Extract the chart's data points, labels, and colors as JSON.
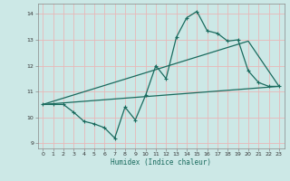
{
  "xlabel": "Humidex (Indice chaleur)",
  "bg_color": "#cce8e6",
  "grid_color": "#e8b8b8",
  "line_color": "#1a6b5e",
  "spine_color": "#888888",
  "xlim": [
    -0.5,
    23.5
  ],
  "ylim": [
    8.8,
    14.4
  ],
  "yticks": [
    9,
    10,
    11,
    12,
    13,
    14
  ],
  "xticks": [
    0,
    1,
    2,
    3,
    4,
    5,
    6,
    7,
    8,
    9,
    10,
    11,
    12,
    13,
    14,
    15,
    16,
    17,
    18,
    19,
    20,
    21,
    22,
    23
  ],
  "line1_x": [
    0,
    1,
    2,
    3,
    4,
    5,
    6,
    7,
    8,
    9,
    10,
    11,
    12,
    13,
    14,
    15,
    16,
    17,
    18,
    19,
    20,
    21,
    22,
    23
  ],
  "line1_y": [
    10.5,
    10.5,
    10.5,
    10.2,
    9.85,
    9.75,
    9.6,
    9.2,
    10.4,
    9.9,
    10.85,
    12.0,
    11.5,
    13.1,
    13.85,
    14.1,
    13.35,
    13.25,
    12.95,
    13.0,
    11.8,
    11.35,
    11.2,
    11.2
  ],
  "line2_x": [
    0,
    23
  ],
  "line2_y": [
    10.5,
    11.2
  ],
  "line3_x": [
    0,
    20,
    23
  ],
  "line3_y": [
    10.5,
    12.95,
    11.2
  ]
}
